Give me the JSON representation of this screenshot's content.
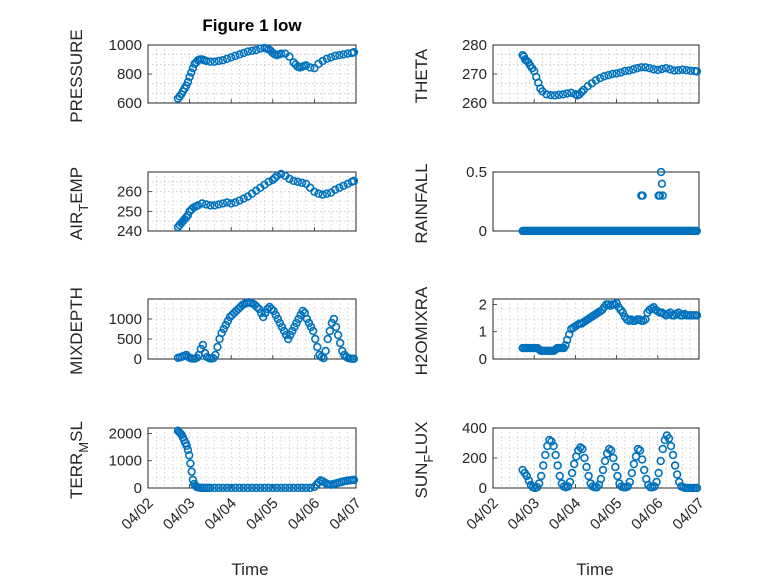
{
  "figure": {
    "title": "Figure 1 low",
    "x_label": "Time",
    "x_ticks": [
      "04/02",
      "04/03",
      "04/04",
      "04/05",
      "04/06",
      "04/07"
    ],
    "marker_color": "#0072BD"
  },
  "chart_data": [
    {
      "type": "scatter",
      "ylabel": "PRESSURE",
      "ylabel_sub": "",
      "ylabel_suffix": "",
      "xlim": [
        0,
        5
      ],
      "ylim": [
        600,
        1000
      ],
      "yticks": [
        600,
        800,
        1000
      ],
      "grid": true,
      "x": [
        0.72,
        0.76,
        0.8,
        0.84,
        0.88,
        0.92,
        0.96,
        1.0,
        1.04,
        1.08,
        1.12,
        1.16,
        1.2,
        1.25,
        1.3,
        1.35,
        1.4,
        1.5,
        1.6,
        1.7,
        1.8,
        1.9,
        2.0,
        2.1,
        2.2,
        2.3,
        2.4,
        2.5,
        2.6,
        2.7,
        2.8,
        2.85,
        2.9,
        2.95,
        3.0,
        3.05,
        3.1,
        3.15,
        3.2,
        3.3,
        3.4,
        3.5,
        3.55,
        3.6,
        3.65,
        3.7,
        3.75,
        3.8,
        3.9,
        4.0,
        4.1,
        4.2,
        4.3,
        4.4,
        4.5,
        4.6,
        4.7,
        4.8,
        4.9,
        4.95
      ],
      "y": [
        630,
        645,
        660,
        680,
        700,
        720,
        745,
        780,
        810,
        840,
        870,
        880,
        895,
        900,
        900,
        895,
        890,
        885,
        885,
        890,
        895,
        905,
        915,
        925,
        935,
        945,
        955,
        960,
        965,
        975,
        980,
        975,
        970,
        960,
        945,
        935,
        930,
        935,
        940,
        940,
        920,
        880,
        865,
        850,
        845,
        850,
        855,
        860,
        845,
        840,
        870,
        890,
        905,
        915,
        925,
        930,
        935,
        940,
        945,
        950
      ],
      "rainfall": false
    },
    {
      "type": "scatter",
      "ylabel": "THETA",
      "ylabel_sub": "",
      "ylabel_suffix": "",
      "xlim": [
        0,
        5
      ],
      "ylim": [
        260,
        280
      ],
      "yticks": [
        260,
        270,
        280
      ],
      "grid": true,
      "x": [
        0.72,
        0.75,
        0.78,
        0.82,
        0.86,
        0.9,
        0.95,
        1.0,
        1.05,
        1.1,
        1.15,
        1.2,
        1.3,
        1.4,
        1.5,
        1.6,
        1.7,
        1.8,
        1.9,
        2.0,
        2.05,
        2.1,
        2.15,
        2.2,
        2.3,
        2.4,
        2.5,
        2.6,
        2.7,
        2.8,
        2.9,
        3.0,
        3.1,
        3.2,
        3.3,
        3.4,
        3.5,
        3.6,
        3.7,
        3.8,
        3.9,
        4.0,
        4.1,
        4.2,
        4.3,
        4.4,
        4.5,
        4.6,
        4.7,
        4.8,
        4.9,
        4.95
      ],
      "y": [
        276.5,
        276,
        275,
        274.5,
        274,
        273,
        272,
        271,
        269,
        267,
        265,
        264,
        263,
        262.7,
        262.6,
        262.8,
        263,
        263.3,
        263.5,
        263,
        262.6,
        263,
        263.8,
        264.5,
        265.8,
        266.8,
        267.8,
        268.6,
        269.2,
        269.6,
        270,
        270.2,
        270.5,
        271,
        271.2,
        271.6,
        272,
        272.3,
        272.3,
        272,
        271.6,
        271.4,
        271.7,
        272,
        271.6,
        271.2,
        271.3,
        271.5,
        271.3,
        271.1,
        271.0,
        270.9
      ],
      "rainfall": false
    },
    {
      "type": "scatter",
      "ylabel": "AIR",
      "ylabel_sub": "T",
      "ylabel_suffix": "EMP",
      "xlim": [
        0,
        5
      ],
      "ylim": [
        240,
        270
      ],
      "yticks": [
        240,
        250,
        260
      ],
      "grid": true,
      "x": [
        0.72,
        0.76,
        0.8,
        0.84,
        0.88,
        0.92,
        0.96,
        1.0,
        1.05,
        1.1,
        1.15,
        1.2,
        1.3,
        1.4,
        1.5,
        1.6,
        1.7,
        1.8,
        1.9,
        2.0,
        2.1,
        2.2,
        2.3,
        2.4,
        2.5,
        2.6,
        2.7,
        2.8,
        2.9,
        3.0,
        3.05,
        3.1,
        3.2,
        3.3,
        3.4,
        3.5,
        3.6,
        3.7,
        3.8,
        3.9,
        4.0,
        4.1,
        4.2,
        4.3,
        4.4,
        4.5,
        4.6,
        4.7,
        4.8,
        4.9,
        4.95
      ],
      "y": [
        242,
        243,
        244,
        245,
        246,
        247,
        248,
        250,
        251,
        252,
        252.5,
        253,
        254,
        253.5,
        253,
        253,
        253.5,
        254,
        254.5,
        254,
        254.5,
        255.5,
        256.5,
        257.5,
        259,
        260.5,
        262,
        263.5,
        265,
        266,
        267,
        268,
        269,
        268,
        266.5,
        265.5,
        265,
        264.5,
        264,
        262,
        260,
        259,
        258.5,
        259,
        259.5,
        261,
        262,
        263,
        264,
        265,
        265.5
      ],
      "rainfall": false
    },
    {
      "type": "scatter",
      "ylabel": "RAINFALL",
      "ylabel_sub": "",
      "ylabel_suffix": "",
      "xlim": [
        0,
        5
      ],
      "ylim": [
        0,
        0.5
      ],
      "yticks": [
        0,
        0.5
      ],
      "grid": false,
      "x": [
        3.6,
        3.63,
        4.02,
        4.05,
        4.08,
        4.1,
        4.12
      ],
      "y": [
        0.3,
        0.3,
        0.3,
        0.3,
        0.5,
        0.4,
        0.3
      ],
      "rainfall": true
    },
    {
      "type": "scatter",
      "ylabel": "MIXDEPTH",
      "ylabel_sub": "",
      "ylabel_suffix": "",
      "xlim": [
        0,
        5
      ],
      "ylim": [
        0,
        1500
      ],
      "yticks": [
        0,
        500,
        1000
      ],
      "grid": true,
      "x": [
        0.72,
        0.77,
        0.82,
        0.87,
        0.92,
        0.97,
        1.02,
        1.07,
        1.12,
        1.17,
        1.22,
        1.27,
        1.32,
        1.37,
        1.42,
        1.47,
        1.52,
        1.57,
        1.62,
        1.67,
        1.72,
        1.77,
        1.82,
        1.87,
        1.92,
        1.97,
        2.02,
        2.07,
        2.12,
        2.17,
        2.22,
        2.27,
        2.32,
        2.37,
        2.42,
        2.47,
        2.52,
        2.57,
        2.62,
        2.67,
        2.72,
        2.77,
        2.82,
        2.87,
        2.92,
        2.97,
        3.02,
        3.07,
        3.12,
        3.17,
        3.22,
        3.27,
        3.32,
        3.37,
        3.42,
        3.47,
        3.52,
        3.57,
        3.62,
        3.67,
        3.72,
        3.77,
        3.82,
        3.87,
        3.92,
        3.97,
        4.02,
        4.07,
        4.12,
        4.17,
        4.22,
        4.27,
        4.32,
        4.37,
        4.42,
        4.47,
        4.52,
        4.57,
        4.62,
        4.67,
        4.72,
        4.77,
        4.82,
        4.87,
        4.92,
        4.95
      ],
      "y": [
        30,
        40,
        60,
        80,
        100,
        50,
        20,
        10,
        10,
        30,
        100,
        250,
        350,
        150,
        50,
        20,
        10,
        20,
        100,
        300,
        500,
        650,
        750,
        850,
        950,
        1050,
        1100,
        1150,
        1200,
        1250,
        1300,
        1350,
        1380,
        1400,
        1420,
        1400,
        1380,
        1350,
        1300,
        1250,
        1150,
        1050,
        1150,
        1250,
        1300,
        1250,
        1200,
        1100,
        1000,
        900,
        800,
        700,
        600,
        500,
        600,
        700,
        800,
        900,
        1000,
        1100,
        1200,
        1150,
        1000,
        900,
        800,
        700,
        500,
        300,
        100,
        50,
        20,
        200,
        500,
        700,
        900,
        1000,
        800,
        600,
        400,
        200,
        100,
        50,
        20,
        10,
        5,
        5
      ],
      "rainfall": false
    },
    {
      "type": "scatter",
      "ylabel": "H2OMIXRA",
      "ylabel_sub": "",
      "ylabel_suffix": "",
      "xlim": [
        0,
        5
      ],
      "ylim": [
        0,
        2.2
      ],
      "yticks": [
        0,
        1,
        2
      ],
      "grid": true,
      "x": [
        0.72,
        0.76,
        0.8,
        0.84,
        0.88,
        0.92,
        0.96,
        1.0,
        1.04,
        1.08,
        1.12,
        1.16,
        1.2,
        1.24,
        1.28,
        1.32,
        1.36,
        1.4,
        1.44,
        1.48,
        1.52,
        1.56,
        1.6,
        1.64,
        1.68,
        1.72,
        1.76,
        1.8,
        1.85,
        1.9,
        1.95,
        2.0,
        2.05,
        2.1,
        2.15,
        2.2,
        2.25,
        2.3,
        2.35,
        2.4,
        2.45,
        2.5,
        2.55,
        2.6,
        2.65,
        2.7,
        2.75,
        2.8,
        2.85,
        2.9,
        2.95,
        3.0,
        3.05,
        3.1,
        3.15,
        3.2,
        3.25,
        3.3,
        3.35,
        3.4,
        3.45,
        3.5,
        3.55,
        3.6,
        3.65,
        3.7,
        3.75,
        3.8,
        3.85,
        3.9,
        3.95,
        4.0,
        4.05,
        4.1,
        4.15,
        4.2,
        4.25,
        4.3,
        4.35,
        4.4,
        4.45,
        4.5,
        4.55,
        4.6,
        4.65,
        4.7,
        4.75,
        4.8,
        4.85,
        4.9,
        4.95
      ],
      "y": [
        0.4,
        0.4,
        0.4,
        0.4,
        0.4,
        0.4,
        0.4,
        0.4,
        0.4,
        0.4,
        0.35,
        0.3,
        0.3,
        0.3,
        0.3,
        0.3,
        0.3,
        0.3,
        0.3,
        0.3,
        0.35,
        0.4,
        0.4,
        0.4,
        0.4,
        0.4,
        0.5,
        0.7,
        0.9,
        1.1,
        1.15,
        1.2,
        1.25,
        1.3,
        1.3,
        1.35,
        1.4,
        1.45,
        1.5,
        1.55,
        1.6,
        1.65,
        1.7,
        1.75,
        1.8,
        1.9,
        2.0,
        2.0,
        1.95,
        2.0,
        2.0,
        2.05,
        1.9,
        1.8,
        1.7,
        1.55,
        1.45,
        1.4,
        1.45,
        1.4,
        1.4,
        1.45,
        1.45,
        1.4,
        1.4,
        1.45,
        1.7,
        1.8,
        1.85,
        1.9,
        1.8,
        1.75,
        1.7,
        1.7,
        1.65,
        1.6,
        1.65,
        1.7,
        1.6,
        1.6,
        1.65,
        1.7,
        1.6,
        1.6,
        1.65,
        1.6,
        1.6,
        1.6,
        1.6,
        1.6,
        1.6
      ],
      "rainfall": false
    },
    {
      "type": "scatter",
      "ylabel": "TERR",
      "ylabel_sub": "M",
      "ylabel_suffix": "SL",
      "xlim": [
        0,
        5
      ],
      "ylim": [
        0,
        2200
      ],
      "yticks": [
        0,
        1000,
        2000
      ],
      "grid": true,
      "x": [
        0.72,
        0.75,
        0.78,
        0.81,
        0.84,
        0.87,
        0.9,
        0.93,
        0.96,
        0.99,
        1.02,
        1.05,
        1.08,
        1.11,
        1.14,
        1.17,
        1.2,
        1.25,
        1.3,
        1.35,
        1.4,
        1.45,
        1.5,
        1.6,
        1.7,
        1.8,
        1.9,
        2.0,
        2.1,
        2.2,
        2.3,
        2.4,
        2.5,
        2.6,
        2.7,
        2.8,
        2.9,
        3.0,
        3.1,
        3.2,
        3.3,
        3.4,
        3.5,
        3.6,
        3.7,
        3.8,
        3.9,
        4.0,
        4.05,
        4.1,
        4.15,
        4.2,
        4.25,
        4.3,
        4.35,
        4.4,
        4.45,
        4.5,
        4.55,
        4.6,
        4.65,
        4.7,
        4.75,
        4.8,
        4.85,
        4.9,
        4.95
      ],
      "y": [
        2100,
        2050,
        2000,
        1950,
        1850,
        1750,
        1650,
        1550,
        1400,
        1200,
        900,
        600,
        300,
        150,
        80,
        40,
        20,
        10,
        5,
        5,
        5,
        5,
        5,
        5,
        5,
        5,
        5,
        5,
        5,
        5,
        5,
        5,
        5,
        5,
        5,
        5,
        5,
        5,
        5,
        5,
        5,
        5,
        5,
        5,
        5,
        5,
        5,
        40,
        120,
        200,
        280,
        250,
        200,
        150,
        130,
        120,
        140,
        160,
        180,
        200,
        220,
        240,
        260,
        270,
        280,
        290,
        300
      ],
      "rainfall": false
    },
    {
      "type": "scatter",
      "ylabel": "SUN",
      "ylabel_sub": "F",
      "ylabel_suffix": "LUX",
      "xlim": [
        0,
        5
      ],
      "ylim": [
        0,
        400
      ],
      "yticks": [
        0,
        200,
        400
      ],
      "grid": true,
      "x": [
        0.72,
        0.77,
        0.82,
        0.87,
        0.92,
        0.97,
        1.02,
        1.07,
        1.12,
        1.17,
        1.22,
        1.27,
        1.32,
        1.37,
        1.42,
        1.47,
        1.52,
        1.57,
        1.62,
        1.67,
        1.72,
        1.77,
        1.82,
        1.87,
        1.92,
        1.97,
        2.02,
        2.07,
        2.12,
        2.17,
        2.22,
        2.27,
        2.32,
        2.37,
        2.42,
        2.47,
        2.52,
        2.57,
        2.62,
        2.67,
        2.72,
        2.77,
        2.82,
        2.87,
        2.92,
        2.97,
        3.02,
        3.07,
        3.12,
        3.17,
        3.22,
        3.27,
        3.32,
        3.37,
        3.42,
        3.47,
        3.52,
        3.57,
        3.62,
        3.67,
        3.72,
        3.77,
        3.82,
        3.87,
        3.92,
        3.97,
        4.02,
        4.07,
        4.12,
        4.17,
        4.22,
        4.27,
        4.32,
        4.37,
        4.42,
        4.47,
        4.52,
        4.57,
        4.62,
        4.67,
        4.72,
        4.77,
        4.82,
        4.87,
        4.92,
        4.95
      ],
      "y": [
        120,
        100,
        80,
        50,
        20,
        5,
        0,
        5,
        30,
        80,
        150,
        220,
        280,
        320,
        310,
        280,
        220,
        150,
        80,
        30,
        10,
        5,
        10,
        40,
        100,
        160,
        210,
        250,
        270,
        260,
        200,
        140,
        80,
        30,
        10,
        5,
        5,
        20,
        60,
        120,
        180,
        230,
        260,
        250,
        200,
        140,
        80,
        30,
        10,
        5,
        5,
        10,
        40,
        100,
        160,
        210,
        260,
        250,
        190,
        120,
        60,
        20,
        5,
        5,
        10,
        40,
        100,
        180,
        260,
        320,
        350,
        330,
        280,
        220,
        150,
        90,
        40,
        10,
        5,
        0,
        0,
        0,
        0,
        0,
        0,
        0
      ],
      "rainfall": false
    }
  ]
}
